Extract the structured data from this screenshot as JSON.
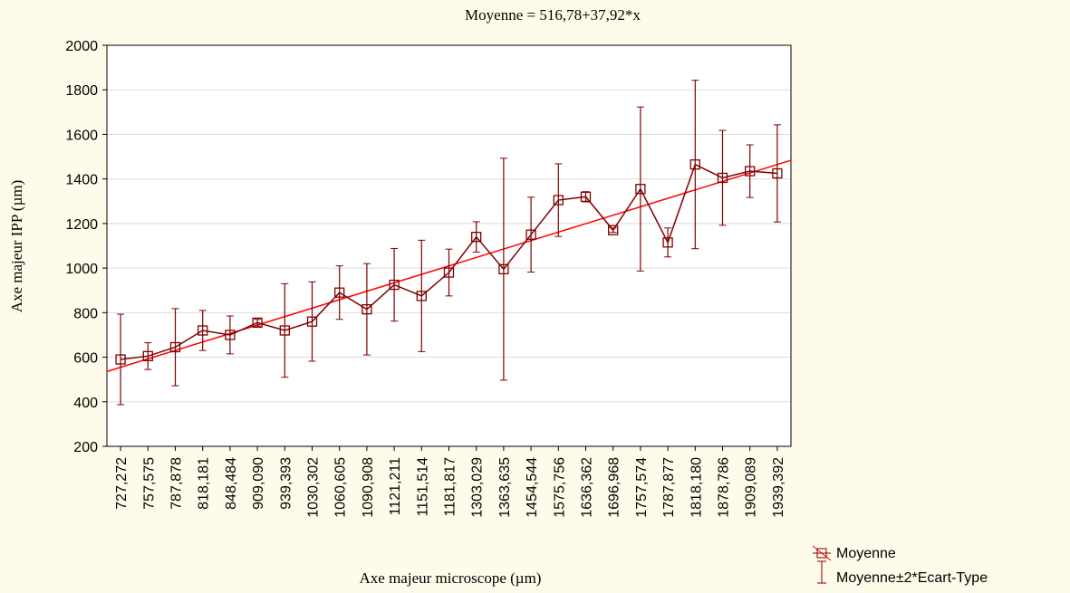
{
  "chart_data": {
    "type": "line",
    "title": "Moyenne = 516,78+37,92*x",
    "x_label": "Axe majeur microscope (µm)",
    "y_label": "Axe majeur IPP (µm)",
    "categories": [
      "727,272",
      "757,575",
      "787,878",
      "818,181",
      "848,484",
      "909,090",
      "939,393",
      "1030,302",
      "1060,605",
      "1090,908",
      "1121,211",
      "1151,514",
      "1181,817",
      "1303,029",
      "1363,635",
      "1454,544",
      "1575,756",
      "1636,362",
      "1696,968",
      "1757,574",
      "1787,877",
      "1818,180",
      "1878,786",
      "1909,089",
      "1939,392"
    ],
    "series": [
      {
        "name": "Moyenne",
        "color": "#7f0000",
        "values": [
          590,
          605,
          645,
          720,
          700,
          755,
          720,
          760,
          890,
          815,
          925,
          875,
          980,
          1140,
          995,
          1150,
          1305,
          1320,
          1170,
          1355,
          1115,
          1465,
          1405,
          1435,
          1425
        ],
        "errors": [
          203,
          60,
          173,
          90,
          85,
          15,
          210,
          178,
          120,
          205,
          163,
          250,
          105,
          68,
          498,
          168,
          163,
          23,
          10,
          368,
          65,
          378,
          213,
          118,
          218
        ]
      }
    ],
    "error_name": "Moyenne±2*Ecart-Type",
    "fit": {
      "intercept": 516.78,
      "slope": 37.92,
      "color": "#ff0000"
    },
    "ylim": [
      200,
      2000
    ],
    "yticks": [
      200,
      400,
      600,
      800,
      1000,
      1200,
      1400,
      1600,
      1800,
      2000
    ],
    "grid": true
  }
}
